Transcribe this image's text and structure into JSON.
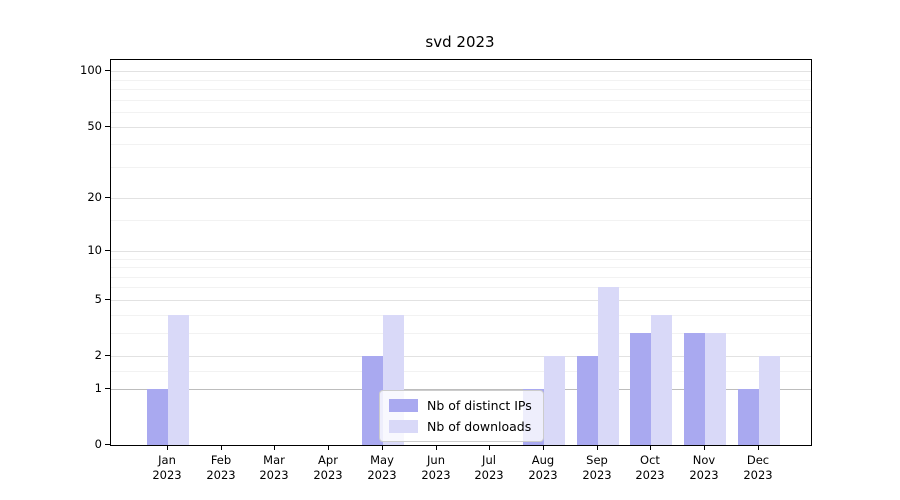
{
  "chart_data": {
    "type": "bar",
    "title": "svd 2023",
    "categories": [
      "Jan 2023",
      "Feb 2023",
      "Mar 2023",
      "Apr 2023",
      "May 2023",
      "Jun 2023",
      "Jul 2023",
      "Aug 2023",
      "Sep 2023",
      "Oct 2023",
      "Nov 2023",
      "Dec 2023"
    ],
    "series": [
      {
        "name": "Nb of distinct IPs",
        "color": "#a9a9f0",
        "values": [
          1,
          0,
          0,
          0,
          2,
          0,
          0,
          1,
          2,
          3,
          3,
          1
        ]
      },
      {
        "name": "Nb of downloads",
        "color": "#d9d9f8",
        "values": [
          4,
          0,
          0,
          0,
          4,
          0,
          0,
          2,
          6,
          4,
          3,
          2
        ]
      }
    ],
    "xlabel": "",
    "ylabel": "",
    "yscale": "log1p",
    "ylim": [
      0,
      115
    ],
    "yticks": [
      0,
      1,
      2,
      5,
      10,
      20,
      50,
      100
    ],
    "minor_yticks": [
      1.5,
      3,
      4,
      6,
      7,
      8,
      9,
      15,
      30,
      40,
      60,
      70,
      80,
      90
    ],
    "emphasized_gridline": 1,
    "grid": "horizontal",
    "legend_position": "lower center"
  },
  "colors": {
    "grid_major": "#e2e2e2",
    "grid_minor": "#f2f2f2",
    "grid_emphasis": "#bdbdbd",
    "spine": "#000000"
  }
}
